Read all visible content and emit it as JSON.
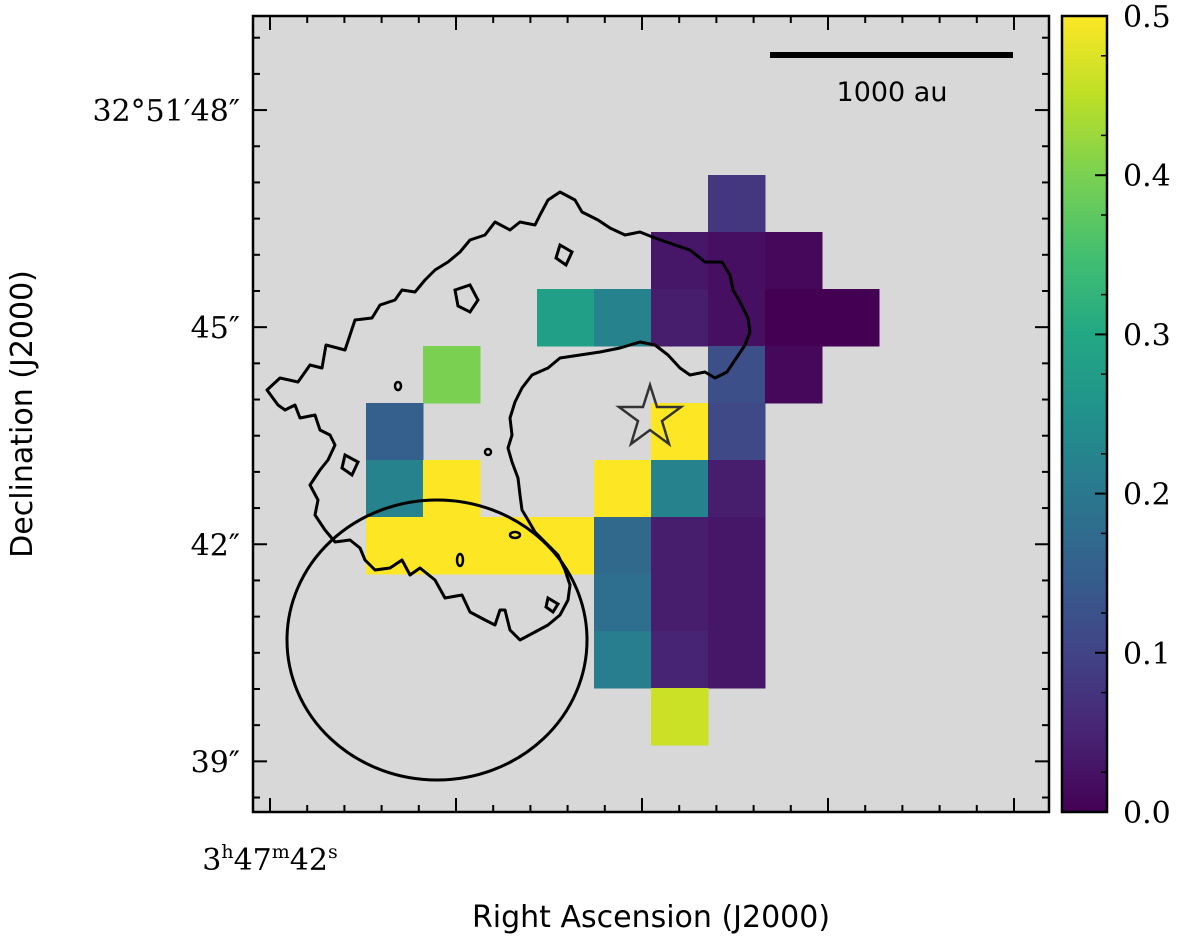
{
  "chart_data": {
    "type": "heatmap",
    "xlabel": "Right Ascension (J2000)",
    "ylabel": "Declination (J2000)",
    "x_tick_labels": [
      {
        "ra_seconds": 42.0,
        "label": "3h47m42s"
      }
    ],
    "y_tick_labels": [
      {
        "dec_arcsec": 48,
        "label": "32°51′48″"
      },
      {
        "dec_arcsec": 45,
        "label": "45″"
      },
      {
        "dec_arcsec": 42,
        "label": "42″"
      },
      {
        "dec_arcsec": 39,
        "label": "39″"
      }
    ],
    "ylim_arcsec": [
      38.3,
      49.3
    ],
    "colorbar": {
      "colormap": "viridis",
      "range": [
        0.0,
        0.5
      ],
      "tick_values": [
        0.0,
        0.1,
        0.2,
        0.3,
        0.4,
        0.5
      ],
      "tick_labels": [
        "0.0",
        "0.1",
        "0.2",
        "0.3",
        "0.4",
        "0.5"
      ]
    },
    "scale_bar_label": "1000 au",
    "background_color": "#d8d8d8",
    "grid": false,
    "pixel_size_arcsec": 0.78,
    "pixels": [
      {
        "col": 7,
        "row": 0,
        "value": 0.08
      },
      {
        "col": 6,
        "row": 1,
        "value": 0.03
      },
      {
        "col": 7,
        "row": 1,
        "value": 0.02
      },
      {
        "col": 8,
        "row": 1,
        "value": 0.01
      },
      {
        "col": 4,
        "row": 2,
        "value": 0.28
      },
      {
        "col": 5,
        "row": 2,
        "value": 0.22
      },
      {
        "col": 6,
        "row": 2,
        "value": 0.04
      },
      {
        "col": 7,
        "row": 2,
        "value": 0.02
      },
      {
        "col": 8,
        "row": 2,
        "value": 0.0
      },
      {
        "col": 9,
        "row": 2,
        "value": 0.0
      },
      {
        "col": 2,
        "row": 3,
        "value": 0.4
      },
      {
        "col": 7,
        "row": 3,
        "value": 0.12
      },
      {
        "col": 8,
        "row": 3,
        "value": 0.01
      },
      {
        "col": 1,
        "row": 4,
        "value": 0.15
      },
      {
        "col": 6,
        "row": 4,
        "value": 0.5
      },
      {
        "col": 7,
        "row": 4,
        "value": 0.11
      },
      {
        "col": 1,
        "row": 5,
        "value": 0.22
      },
      {
        "col": 2,
        "row": 5,
        "value": 0.5
      },
      {
        "col": 5,
        "row": 5,
        "value": 0.5
      },
      {
        "col": 6,
        "row": 5,
        "value": 0.22
      },
      {
        "col": 7,
        "row": 5,
        "value": 0.04
      },
      {
        "col": 1,
        "row": 6,
        "value": 0.5
      },
      {
        "col": 2,
        "row": 6,
        "value": 0.5
      },
      {
        "col": 3,
        "row": 6,
        "value": 0.5
      },
      {
        "col": 4,
        "row": 6,
        "value": 0.5
      },
      {
        "col": 5,
        "row": 6,
        "value": 0.17
      },
      {
        "col": 6,
        "row": 6,
        "value": 0.04
      },
      {
        "col": 7,
        "row": 6,
        "value": 0.03
      },
      {
        "col": 5,
        "row": 7,
        "value": 0.18
      },
      {
        "col": 6,
        "row": 7,
        "value": 0.04
      },
      {
        "col": 7,
        "row": 7,
        "value": 0.03
      },
      {
        "col": 5,
        "row": 8,
        "value": 0.21
      },
      {
        "col": 6,
        "row": 8,
        "value": 0.05
      },
      {
        "col": 7,
        "row": 8,
        "value": 0.03
      },
      {
        "col": 6,
        "row": 9,
        "value": 0.46
      }
    ]
  }
}
